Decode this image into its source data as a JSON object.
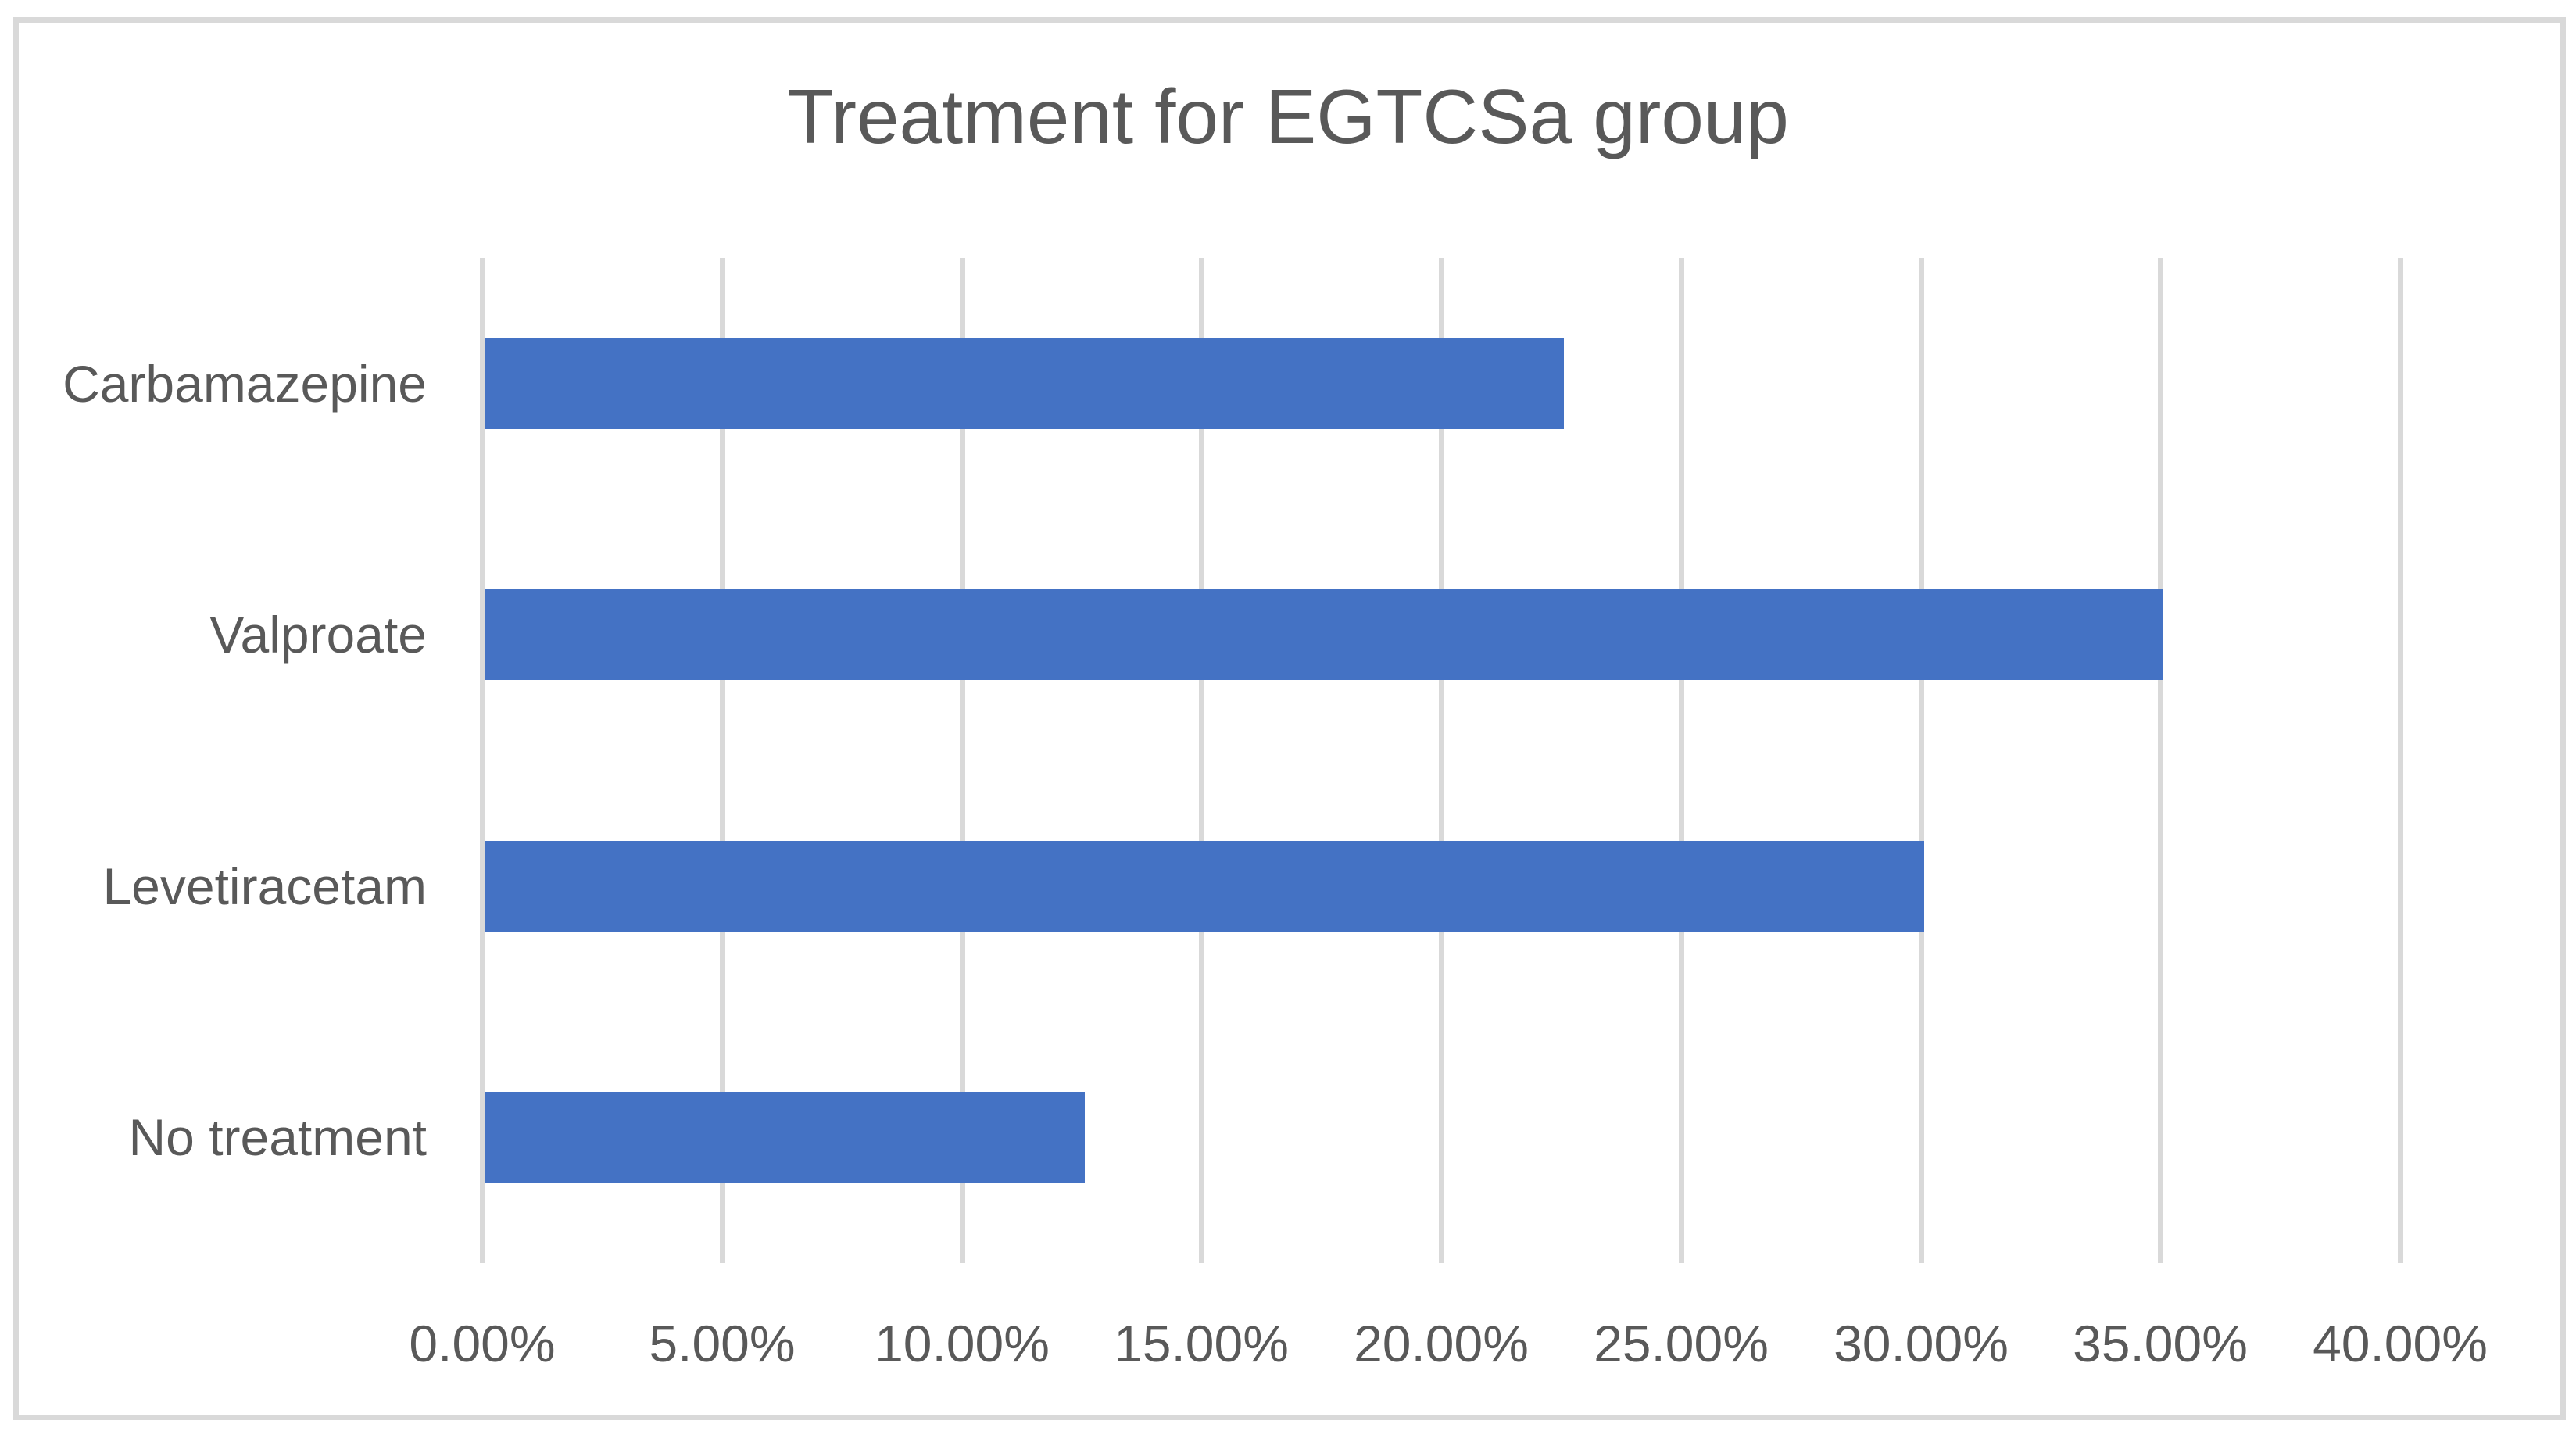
{
  "chart_data": {
    "type": "bar",
    "orientation": "horizontal",
    "title": "Treatment for EGTCSa group",
    "categories": [
      "Carbamazepine",
      "Valproate",
      "Levetiracetam",
      "No treatment"
    ],
    "values": [
      22.5,
      35,
      30,
      12.5
    ],
    "value_unit": "%",
    "xlabel": "",
    "ylabel": "",
    "xlim": [
      0,
      40
    ],
    "xtick_step": 5,
    "xtick_labels": [
      "0.00%",
      "5.00%",
      "10.00%",
      "15.00%",
      "20.00%",
      "25.00%",
      "30.00%",
      "35.00%",
      "40.00%"
    ],
    "grid": true,
    "legend": false
  },
  "colors": {
    "bar": "#4472C4",
    "gridline": "#D9D9D9",
    "chart_border": "#D9D9D9",
    "text": "#595959",
    "background": "#FFFFFF"
  }
}
